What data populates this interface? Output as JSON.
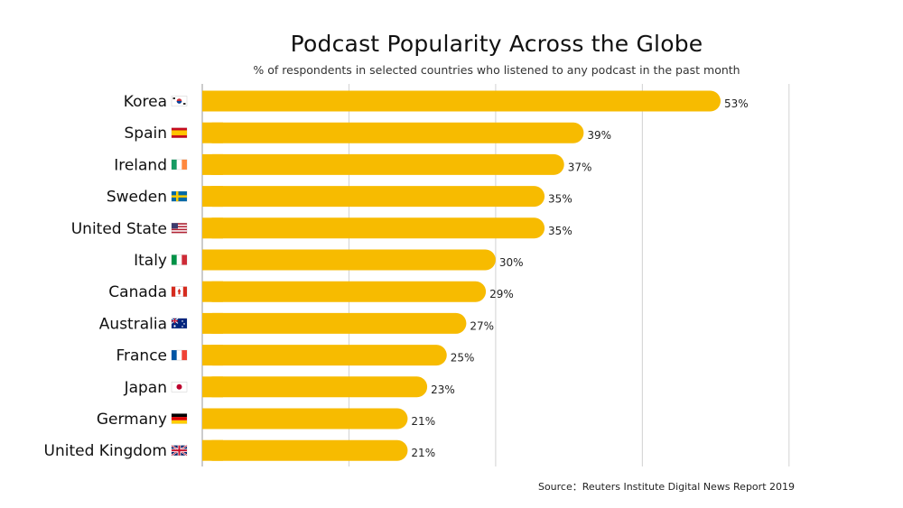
{
  "title": "Podcast Popularity Across the Globe",
  "subtitle": "% of respondents in selected countries who listened to any podcast in the past month",
  "source": "Source：Reuters Institute Digital News Report 2019",
  "chart_data": {
    "type": "bar",
    "orientation": "horizontal",
    "title": "Podcast Popularity Across the Globe",
    "subtitle": "% of respondents in selected countries who listened to any podcast in the past month",
    "categories": [
      "Korea",
      "Spain",
      "Ireland",
      "Sweden",
      "United State",
      "Italy",
      "Canada",
      "Australia",
      "France",
      "Japan",
      "Germany",
      "United Kingdom"
    ],
    "flags": [
      "south-korea-flag-icon",
      "spain-flag-icon",
      "ireland-flag-icon",
      "sweden-flag-icon",
      "usa-flag-icon",
      "italy-flag-icon",
      "canada-flag-icon",
      "australia-flag-icon",
      "france-flag-icon",
      "japan-flag-icon",
      "germany-flag-icon",
      "uk-flag-icon"
    ],
    "values": [
      53,
      39,
      37,
      35,
      35,
      30,
      29,
      27,
      25,
      23,
      21,
      21
    ],
    "value_labels": [
      "53%",
      "39%",
      "37%",
      "35%",
      "35%",
      "30%",
      "29%",
      "27%",
      "25%",
      "23%",
      "21%",
      "21%"
    ],
    "xlim": [
      0,
      60
    ],
    "grid": true,
    "bar_color": "#F7BB00"
  }
}
